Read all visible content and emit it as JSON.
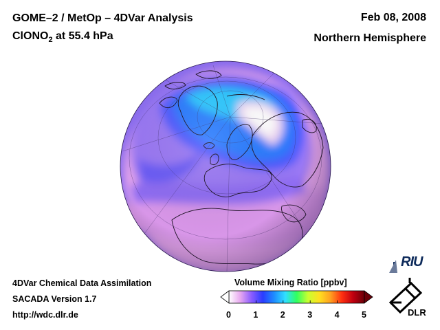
{
  "header": {
    "title": "GOME–2 / MetOp – 4DVar Analysis",
    "species": "ClONO",
    "species_sub": "2",
    "level": " at 55.4 hPa",
    "date": "Feb 08, 2008",
    "region": "Northern Hemisphere"
  },
  "footer": {
    "line1": "4DVar Chemical Data Assimilation",
    "line2": "SACADA Version 1.7",
    "line3": "http://wdc.dlr.de"
  },
  "colorbar": {
    "title": "Volume Mixing Ratio [ppbv]",
    "min": 0,
    "max": 5,
    "ticks": [
      "0",
      "1",
      "2",
      "3",
      "4",
      "5"
    ],
    "stops": [
      "#ffffff",
      "#e8a8f0",
      "#8a5cff",
      "#2a3cff",
      "#1e8cff",
      "#30e0ff",
      "#30ff60",
      "#c8ff30",
      "#ffe020",
      "#ffa020",
      "#ff3010",
      "#c00010",
      "#6a0008"
    ]
  },
  "logos": {
    "riu": "RIU",
    "dlr": "DLR"
  }
}
